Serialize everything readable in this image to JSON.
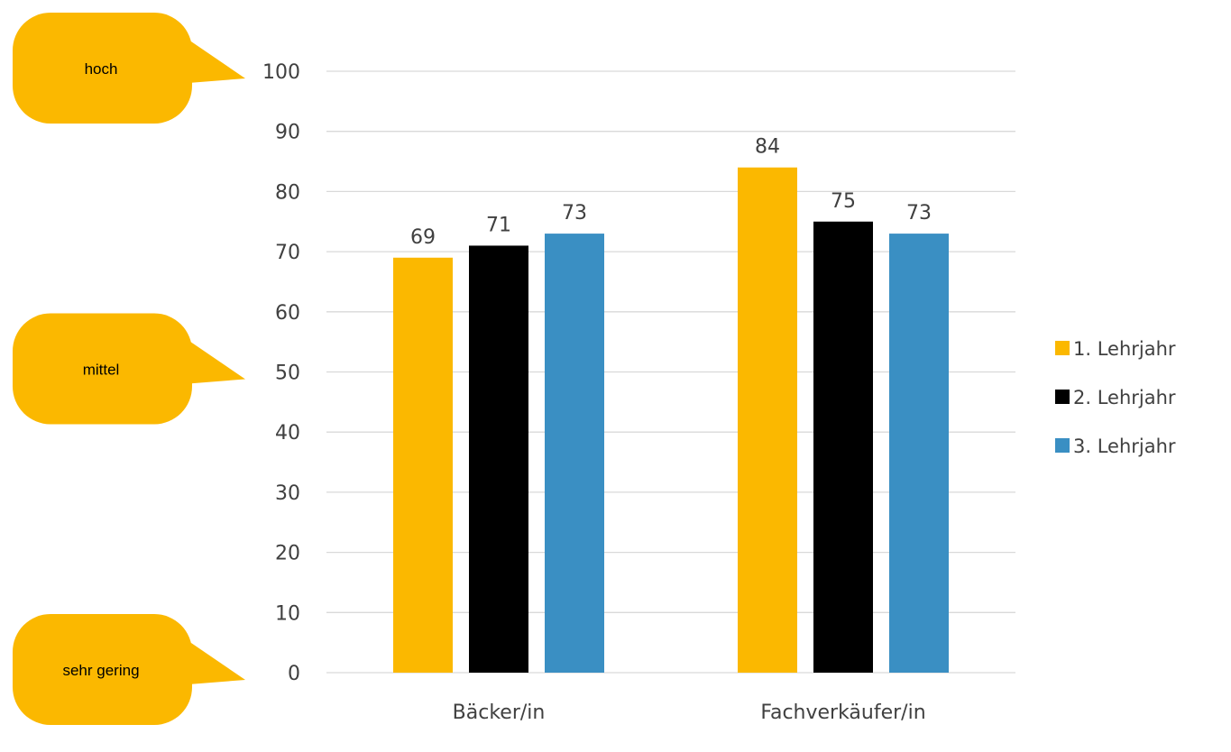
{
  "chart_data": {
    "type": "bar",
    "categories": [
      "Bäcker/in",
      "Fachverkäufer/in"
    ],
    "series": [
      {
        "name": "1. Lehrjahr",
        "color": "#FBB800",
        "values": [
          69,
          84
        ]
      },
      {
        "name": "2. Lehrjahr",
        "color": "#000000",
        "values": [
          71,
          75
        ]
      },
      {
        "name": "3. Lehrjahr",
        "color": "#3A8FC3",
        "values": [
          73,
          73
        ]
      }
    ],
    "data_labels": [
      [
        "69",
        "84"
      ],
      [
        "71",
        "75"
      ],
      [
        "73",
        "73"
      ]
    ],
    "ylim": [
      0,
      100
    ],
    "yticks": [
      0,
      10,
      20,
      30,
      40,
      50,
      60,
      70,
      80,
      90,
      100
    ],
    "grid": true,
    "legend_position": "right",
    "title": "",
    "xlabel": "",
    "ylabel": "",
    "callouts": [
      {
        "label": "hoch",
        "value": 100
      },
      {
        "label": "mittel",
        "value": 50
      },
      {
        "label": "sehr gering",
        "value": 0
      }
    ],
    "callout_color": "#FBB800",
    "gridline_color": "#D9D9D9"
  }
}
